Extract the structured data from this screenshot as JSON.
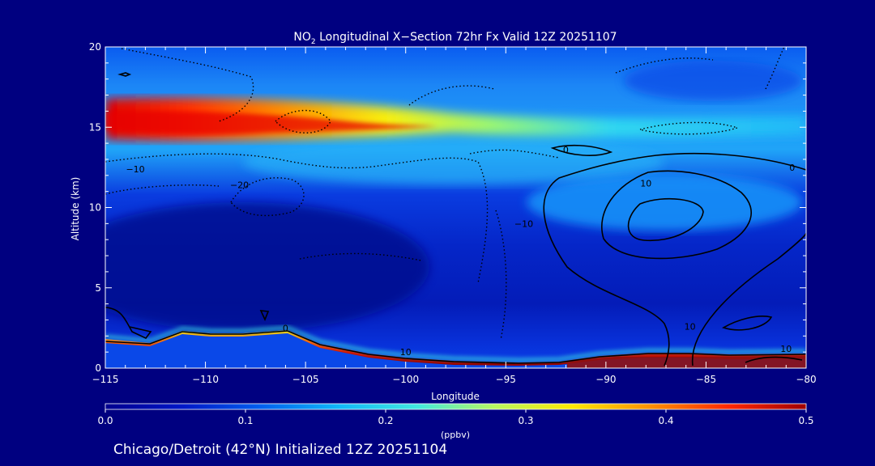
{
  "chart_data": {
    "type": "heatmap",
    "title_prefix": "NO",
    "title_subscript": "2",
    "title_suffix": " Longitudinal X−Section 72hr  Fx Valid 12Z 20251107",
    "xlabel": "Longitude",
    "ylabel": "Altitude (km)",
    "xlim": [
      -115,
      -80
    ],
    "ylim": [
      0,
      20
    ],
    "x_ticks": [
      -115,
      -110,
      -105,
      -100,
      -95,
      -90,
      -85,
      -80
    ],
    "x_tick_labels": [
      "−115",
      "−110",
      "−105",
      "−100",
      "−95",
      "−90",
      "−85",
      "−80"
    ],
    "y_ticks": [
      0,
      5,
      10,
      15,
      20
    ],
    "y_tick_labels": [
      "0",
      "5",
      "10",
      "15",
      "20"
    ],
    "colorbar": {
      "label": "(ppbv)",
      "min": 0.0,
      "max": 0.5,
      "ticks": [
        0.0,
        0.1,
        0.2,
        0.3,
        0.4,
        0.5
      ],
      "tick_labels": [
        "0.0",
        "0.1",
        "0.2",
        "0.3",
        "0.4",
        "0.5"
      ],
      "colors": [
        "#00008f",
        "#0018c8",
        "#0060f0",
        "#10b8f8",
        "#40e8e0",
        "#b8f860",
        "#ffe800",
        "#ff9000",
        "#ff2800",
        "#a00000"
      ]
    },
    "contour_labels": [
      {
        "text": "−10",
        "lon": -113.5,
        "alt": 12.2
      },
      {
        "text": "−20",
        "lon": -108.3,
        "alt": 11.2
      },
      {
        "text": "−10",
        "lon": -94.1,
        "alt": 8.8
      },
      {
        "text": "0",
        "lon": -92.0,
        "alt": 13.4
      },
      {
        "text": "0",
        "lon": -80.7,
        "alt": 12.3
      },
      {
        "text": "10",
        "lon": -88.0,
        "alt": 11.3
      },
      {
        "text": "10",
        "lon": -85.8,
        "alt": 2.4
      },
      {
        "text": "10",
        "lon": -100.0,
        "alt": 0.8
      },
      {
        "text": "0",
        "lon": -106.0,
        "alt": 2.3
      },
      {
        "text": "10",
        "lon": -81.0,
        "alt": 1.0
      }
    ]
  },
  "footer": {
    "caption": "Chicago/Detroit (42°N) Initialized 12Z 20251104"
  }
}
